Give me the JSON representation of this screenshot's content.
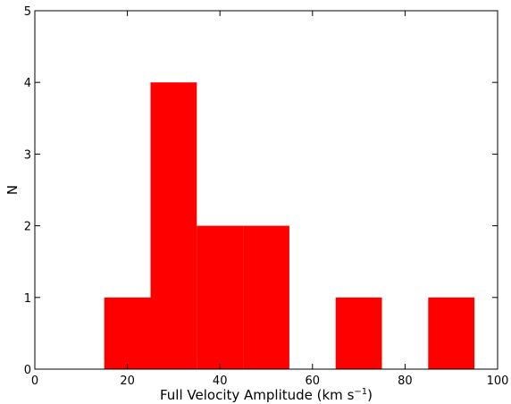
{
  "chart_data": {
    "type": "bar",
    "subtype": "histogram",
    "bins": [
      {
        "x0": 15,
        "x1": 25,
        "count": 1
      },
      {
        "x0": 25,
        "x1": 35,
        "count": 4
      },
      {
        "x0": 35,
        "x1": 45,
        "count": 2
      },
      {
        "x0": 45,
        "x1": 55,
        "count": 2
      },
      {
        "x0": 55,
        "x1": 65,
        "count": 0
      },
      {
        "x0": 65,
        "x1": 75,
        "count": 1
      },
      {
        "x0": 75,
        "x1": 85,
        "count": 0
      },
      {
        "x0": 85,
        "x1": 95,
        "count": 1
      }
    ],
    "xlabel": "Full Velocity Amplitude (km s",
    "xlabel_sup": "−1",
    "xlabel_end": ")",
    "ylabel": "N",
    "xlim": [
      0,
      100
    ],
    "ylim": [
      0,
      5
    ],
    "xticks": [
      0,
      20,
      40,
      60,
      80,
      100
    ],
    "yticks": [
      0,
      1,
      2,
      3,
      4,
      5
    ],
    "bar_color": "#ff0000",
    "grid": false
  }
}
